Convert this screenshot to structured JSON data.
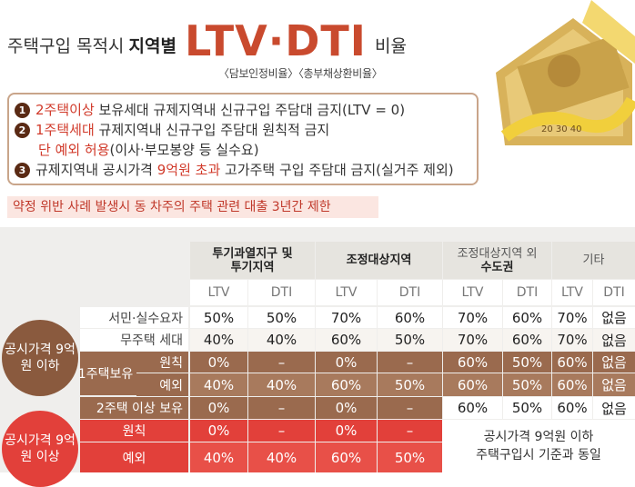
{
  "header": {
    "title_part1": "주택구입 목적시",
    "title_part2": "지역별",
    "title_big": "LTV·DTI",
    "title_part3": "비율",
    "subtitle": "〈담보인정비율〉〈총부채상환비율〉"
  },
  "rules": {
    "r1_num": "1",
    "r1_red": "2주택이상",
    "r1_text": " 보유세대 규제지역내 신규구입 주담대 금지(LTV = 0)",
    "r2_num": "2",
    "r2_red": "1주택세대",
    "r2_text": " 규제지역내 신규구입 주담대 원칙적 금지",
    "r2b_red": "단 예외 허용",
    "r2b_text": "(이사·부모봉양 등 실수요)",
    "r3_num": "3",
    "r3_text1": "규제지역내 공시가격 ",
    "r3_red": "9억원 초과",
    "r3_text2": " 고가주택 구입 주담대 금지(실거주 제외)",
    "warning": "약정 위반 사례 발생시 동 차주의 주택 관련 대출 3년간 제한"
  },
  "table": {
    "col_headers": [
      {
        "line1": "투기과열지구 및",
        "line2": "투기지역"
      },
      {
        "line1": "조정대상지역",
        "line2": ""
      },
      {
        "line1": "조정대상지역 외",
        "line2": "수도권"
      },
      {
        "line1": "기타",
        "line2": ""
      }
    ],
    "ltv": "LTV",
    "dti": "DTI",
    "group1": "공시가격 9억원 이하",
    "group2": "공시가격 9억원 이상",
    "sub_1house": "1주택보유",
    "rows": [
      {
        "label": "서민·실수요자",
        "v": [
          "50%",
          "50%",
          "70%",
          "60%",
          "70%",
          "60%",
          "70%",
          "없음"
        ]
      },
      {
        "label": "무주택 세대",
        "v": [
          "40%",
          "40%",
          "60%",
          "50%",
          "70%",
          "60%",
          "70%",
          "없음"
        ]
      },
      {
        "label": "원칙",
        "v": [
          "0%",
          "–",
          "0%",
          "–",
          "60%",
          "50%",
          "60%",
          "없음"
        ]
      },
      {
        "label": "예외",
        "v": [
          "40%",
          "40%",
          "60%",
          "50%",
          "60%",
          "50%",
          "60%",
          "없음"
        ]
      },
      {
        "label": "2주택 이상 보유",
        "v": [
          "0%",
          "–",
          "0%",
          "–",
          "60%",
          "50%",
          "60%",
          "없음"
        ]
      },
      {
        "label": "원칙",
        "v": [
          "0%",
          "–",
          "0%",
          "–"
        ]
      },
      {
        "label": "예외",
        "v": [
          "40%",
          "40%",
          "60%",
          "50%"
        ]
      }
    ],
    "note_line1": "공시가격 9억원 이하",
    "note_line2": "주택구입시 기준과 동일"
  },
  "colors": {
    "accent_red": "#e2403a",
    "brown": "#9a6a4e",
    "title_orange": "#c94a2e"
  }
}
